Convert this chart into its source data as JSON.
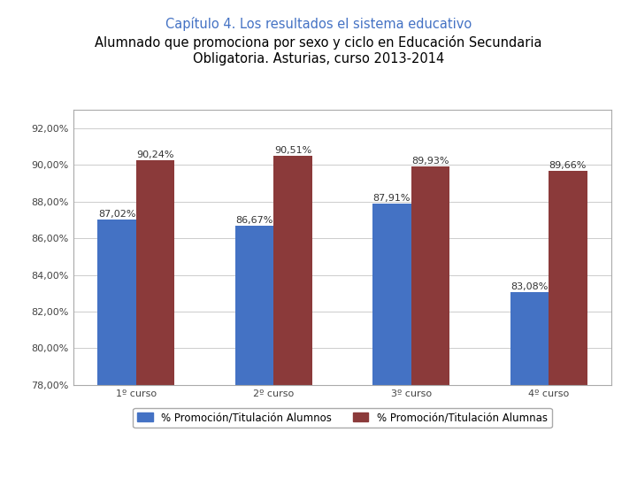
{
  "title_line1": "Capítulo 4. Los resultados el sistema educativo",
  "title_line2": "Alumnado que promociona por sexo y ciclo en Educación Secundaria\nObligatoria. Asturias, curso 2013-2014",
  "categories": [
    "1º curso",
    "2º curso",
    "3º curso",
    "4º curso"
  ],
  "alumnos": [
    87.02,
    86.67,
    87.91,
    83.08
  ],
  "alumnas": [
    90.24,
    90.51,
    89.93,
    89.66
  ],
  "alumnos_labels": [
    "87,02%",
    "86,67%",
    "87,91%",
    "83,08%"
  ],
  "alumnas_labels": [
    "90,24%",
    "90,51%",
    "89,93%",
    "89,66%"
  ],
  "color_alumnos": "#4472C4",
  "color_alumnas": "#8B3A3A",
  "legend_alumnos": "% Promoción/Titulación Alumnos",
  "legend_alumnas": "% Promoción/Titulación Alumnas",
  "ylim_min": 78.0,
  "ylim_max": 93.0,
  "yticks": [
    78.0,
    80.0,
    82.0,
    84.0,
    86.0,
    88.0,
    90.0,
    92.0
  ],
  "title1_color": "#4472C4",
  "title2_color": "#000000",
  "bar_width": 0.28,
  "background_color": "#ffffff",
  "chart_bg": "#ffffff",
  "grid_color": "#cccccc",
  "title1_fontsize": 10.5,
  "title2_fontsize": 10.5,
  "tick_fontsize": 8,
  "label_fontsize": 8,
  "legend_fontsize": 8.5
}
